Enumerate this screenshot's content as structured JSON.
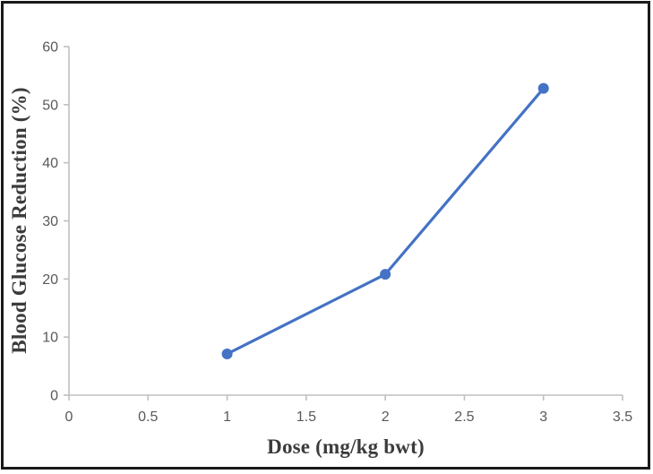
{
  "chart_data": {
    "type": "line",
    "title": "",
    "xlabel": "Dose (mg/kg bwt)",
    "ylabel": "Blood Glucose Reduction (%)",
    "x": [
      1,
      2,
      3
    ],
    "y": [
      7.1,
      20.8,
      52.8
    ],
    "series": [
      {
        "name": "Blood Glucose Reduction",
        "x": [
          1,
          2,
          3
        ],
        "values": [
          7.1,
          20.8,
          52.8
        ]
      }
    ],
    "xlim": [
      0,
      3.5
    ],
    "ylim": [
      0,
      60
    ],
    "x_tick_values": [
      0,
      0.5,
      1,
      1.5,
      2,
      2.5,
      3,
      3.5
    ],
    "x_tick_labels": [
      "0",
      "0.5",
      "1",
      "1.5",
      "2",
      "2.5",
      "3",
      "3.5"
    ],
    "y_tick_values": [
      0,
      10,
      20,
      30,
      40,
      50,
      60
    ],
    "y_tick_labels": [
      "0",
      "10",
      "20",
      "30",
      "40",
      "50",
      "60"
    ],
    "grid": false,
    "legend": "none",
    "marker": "circle",
    "colors": {
      "line": "#4472C4",
      "marker": "#4472C4",
      "axis_line": "#BFBFBF",
      "tick_label": "#595959",
      "axis_title": "#3b3b3b",
      "frame_border": "#1a1a1a",
      "background": "#ffffff"
    }
  }
}
